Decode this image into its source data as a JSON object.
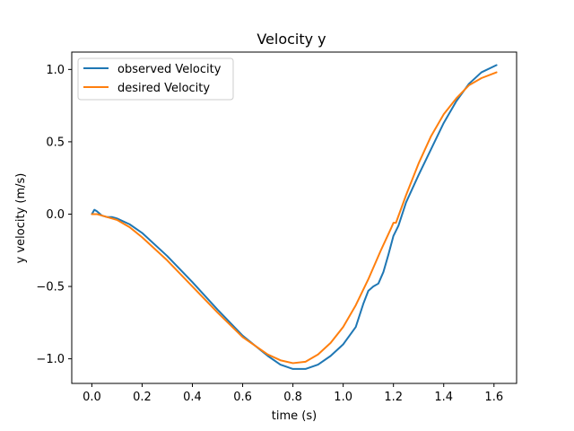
{
  "chart_data": {
    "type": "line",
    "title": "Velocity y",
    "xlabel": "time (s)",
    "ylabel": "y velocity (m/s)",
    "xlim": [
      -0.08,
      1.69
    ],
    "ylim": [
      -1.17,
      1.12
    ],
    "xticks": [
      0.0,
      0.2,
      0.4,
      0.6,
      0.8,
      1.0,
      1.2,
      1.4,
      1.6
    ],
    "xtick_labels": [
      "0.0",
      "0.2",
      "0.4",
      "0.6",
      "0.8",
      "1.0",
      "1.2",
      "1.4",
      "1.6"
    ],
    "yticks": [
      -1.0,
      -0.5,
      0.0,
      0.5,
      1.0
    ],
    "ytick_labels": [
      "−1.0",
      "−0.5",
      "0.0",
      "0.5",
      "1.0"
    ],
    "grid": false,
    "legend_position": "top-left",
    "series": [
      {
        "name": "observed Velocity",
        "color": "#1f77b4",
        "x": [
          0.0,
          0.01,
          0.02,
          0.04,
          0.06,
          0.08,
          0.1,
          0.15,
          0.2,
          0.3,
          0.4,
          0.5,
          0.6,
          0.7,
          0.75,
          0.8,
          0.85,
          0.9,
          0.95,
          1.0,
          1.05,
          1.08,
          1.1,
          1.12,
          1.14,
          1.16,
          1.18,
          1.2,
          1.22,
          1.25,
          1.3,
          1.35,
          1.4,
          1.45,
          1.5,
          1.55,
          1.61
        ],
        "y": [
          0.0,
          0.03,
          0.02,
          -0.01,
          -0.02,
          -0.02,
          -0.03,
          -0.07,
          -0.13,
          -0.29,
          -0.47,
          -0.66,
          -0.84,
          -0.98,
          -1.04,
          -1.07,
          -1.07,
          -1.04,
          -0.98,
          -0.9,
          -0.78,
          -0.62,
          -0.53,
          -0.5,
          -0.48,
          -0.4,
          -0.28,
          -0.15,
          -0.08,
          0.08,
          0.27,
          0.45,
          0.63,
          0.78,
          0.9,
          0.98,
          1.03
        ]
      },
      {
        "name": "desired Velocity",
        "color": "#ff7f0e",
        "x": [
          0.0,
          0.02,
          0.04,
          0.06,
          0.08,
          0.1,
          0.15,
          0.2,
          0.3,
          0.4,
          0.5,
          0.6,
          0.7,
          0.75,
          0.8,
          0.85,
          0.9,
          0.95,
          1.0,
          1.05,
          1.1,
          1.15,
          1.19,
          1.2,
          1.21,
          1.25,
          1.3,
          1.35,
          1.4,
          1.45,
          1.5,
          1.55,
          1.61
        ],
        "y": [
          0.0,
          0.0,
          -0.01,
          -0.02,
          -0.03,
          -0.04,
          -0.09,
          -0.16,
          -0.32,
          -0.5,
          -0.68,
          -0.85,
          -0.97,
          -1.01,
          -1.03,
          -1.02,
          -0.97,
          -0.89,
          -0.78,
          -0.63,
          -0.45,
          -0.25,
          -0.1,
          -0.06,
          -0.06,
          0.13,
          0.35,
          0.54,
          0.69,
          0.8,
          0.89,
          0.94,
          0.98
        ]
      }
    ]
  }
}
